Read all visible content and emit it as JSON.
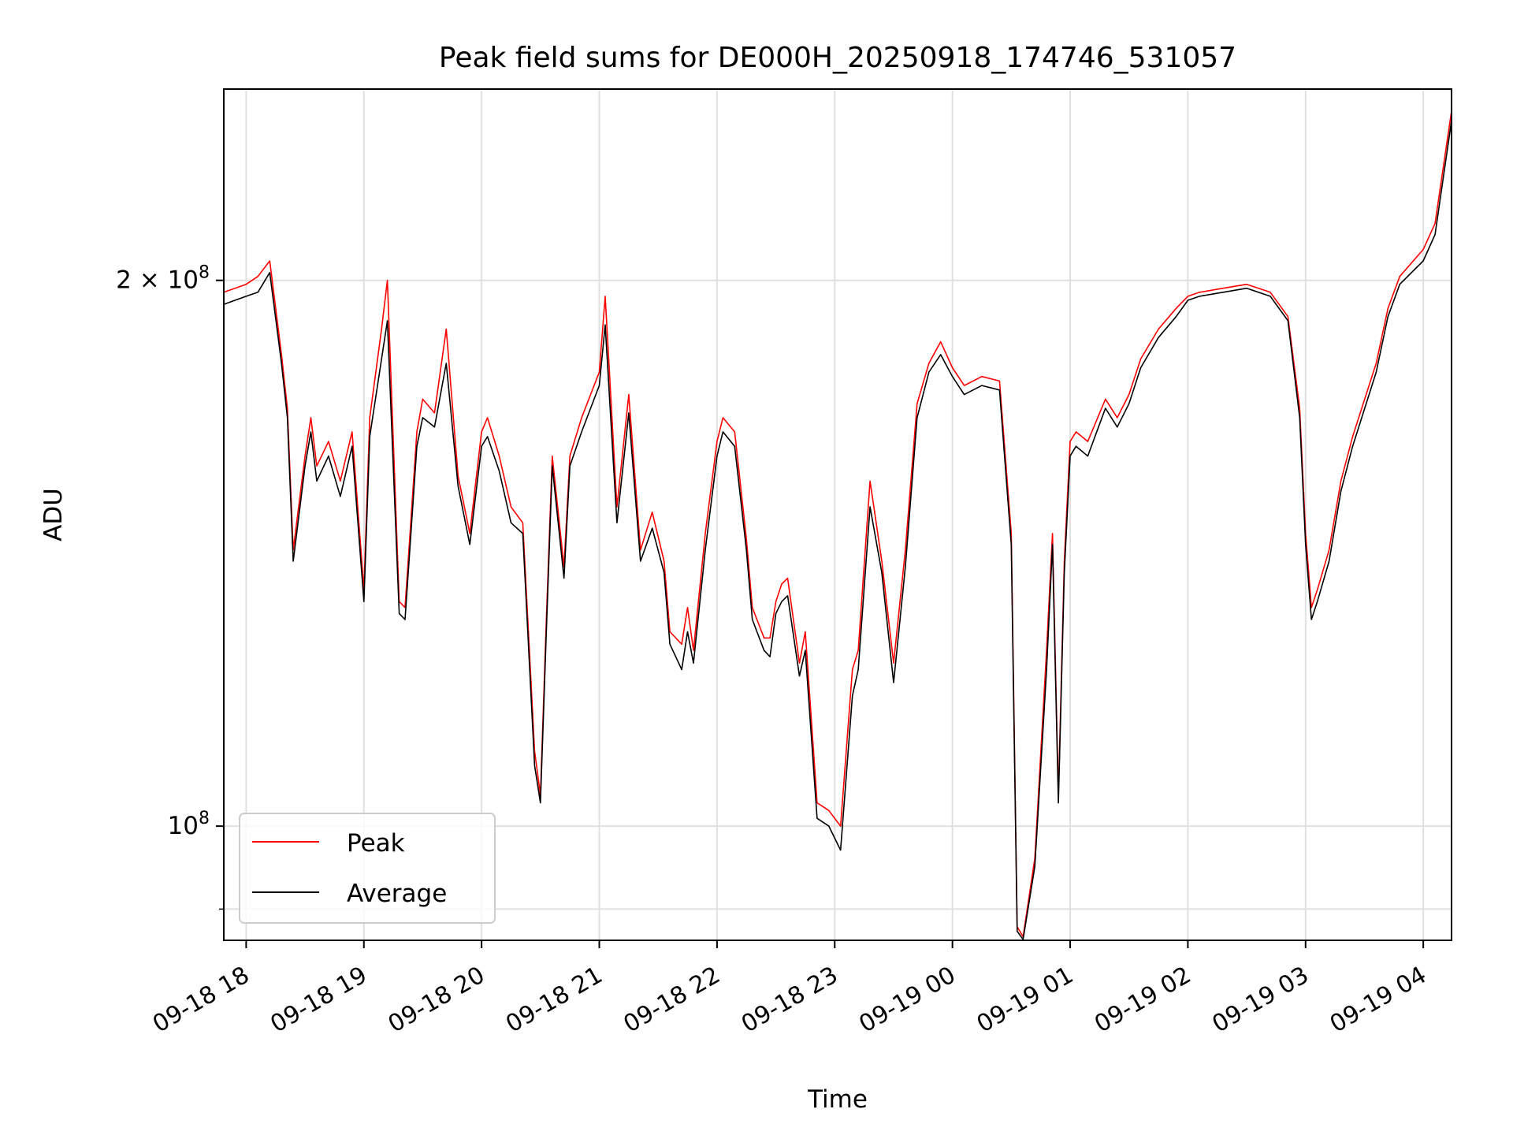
{
  "chart_data": {
    "type": "line",
    "title": "Peak field sums for DE000H_20250918_174746_531057",
    "xlabel": "Time",
    "ylabel": "ADU",
    "yscale": "log",
    "ylim": [
      86500000,
      255000000
    ],
    "xlim_hours": [
      -0.19,
      10.24
    ],
    "grid": true,
    "legend_position": "lower-left",
    "x_tick_labels": [
      "09-18 18",
      "09-18 19",
      "09-18 20",
      "09-18 21",
      "09-18 22",
      "09-18 23",
      "09-19 00",
      "09-19 01",
      "09-19 02",
      "09-19 03",
      "09-19 04"
    ],
    "x_tick_hours": [
      0,
      1,
      2,
      3,
      4,
      5,
      6,
      7,
      8,
      9,
      10
    ],
    "y_major_ticks": [
      {
        "value": 100000000,
        "base": "10",
        "exp": "8",
        "coef": ""
      },
      {
        "value": 200000000,
        "base": "10",
        "exp": "8",
        "coef": "2 × "
      }
    ],
    "y_minor_ticks": [
      90000000
    ],
    "x_hours": [
      -0.19,
      0,
      0.1,
      0.2,
      0.3,
      0.35,
      0.4,
      0.5,
      0.55,
      0.6,
      0.7,
      0.8,
      0.9,
      1.0,
      1.05,
      1.15,
      1.2,
      1.3,
      1.35,
      1.45,
      1.5,
      1.6,
      1.7,
      1.8,
      1.9,
      2.0,
      2.05,
      2.15,
      2.25,
      2.35,
      2.45,
      2.5,
      2.55,
      2.6,
      2.7,
      2.75,
      2.85,
      3.0,
      3.05,
      3.15,
      3.25,
      3.35,
      3.45,
      3.55,
      3.6,
      3.7,
      3.75,
      3.8,
      3.9,
      4.0,
      4.05,
      4.15,
      4.25,
      4.3,
      4.4,
      4.45,
      4.5,
      4.55,
      4.6,
      4.7,
      4.75,
      4.85,
      4.95,
      5.05,
      5.15,
      5.2,
      5.3,
      5.4,
      5.5,
      5.6,
      5.7,
      5.8,
      5.9,
      6.0,
      6.1,
      6.25,
      6.4,
      6.5,
      6.55,
      6.6,
      6.7,
      6.8,
      6.85,
      6.9,
      6.95,
      7.0,
      7.05,
      7.15,
      7.3,
      7.4,
      7.5,
      7.6,
      7.75,
      7.9,
      8.0,
      8.1,
      8.3,
      8.5,
      8.7,
      8.85,
      8.95,
      9.0,
      9.05,
      9.1,
      9.2,
      9.3,
      9.4,
      9.6,
      9.7,
      9.8,
      10.0,
      10.1,
      10.24
    ],
    "series": [
      {
        "name": "Peak",
        "color": "#ff0000",
        "values": [
          197000000,
          199000000,
          201000000,
          205000000,
          182000000,
          170000000,
          142000000,
          160000000,
          168000000,
          158000000,
          163000000,
          155000000,
          165000000,
          135000000,
          168000000,
          188000000,
          200000000,
          133000000,
          132000000,
          165000000,
          172000000,
          169000000,
          188000000,
          156000000,
          145000000,
          165000000,
          168000000,
          160000000,
          150000000,
          147000000,
          110000000,
          104000000,
          130000000,
          160000000,
          139000000,
          160000000,
          168000000,
          178000000,
          196000000,
          150000000,
          173000000,
          142000000,
          149000000,
          140000000,
          128000000,
          126000000,
          132000000,
          125000000,
          145000000,
          163000000,
          168000000,
          165000000,
          144000000,
          132000000,
          127000000,
          127000000,
          133000000,
          136000000,
          137000000,
          123000000,
          128000000,
          103000000,
          102000000,
          100000000,
          122000000,
          125000000,
          155000000,
          140000000,
          123000000,
          142000000,
          171000000,
          180000000,
          185000000,
          179000000,
          175000000,
          177000000,
          176000000,
          145000000,
          88000000,
          86900000,
          96000000,
          125000000,
          145000000,
          104000000,
          140000000,
          163000000,
          165000000,
          163000000,
          172000000,
          168000000,
          173000000,
          181000000,
          188000000,
          193000000,
          196000000,
          197000000,
          198000000,
          199000000,
          197000000,
          191000000,
          170000000,
          145000000,
          132000000,
          135000000,
          142000000,
          155000000,
          164000000,
          180000000,
          193000000,
          201000000,
          208000000,
          215000000,
          248000000
        ]
      },
      {
        "name": "Average",
        "color": "#000000",
        "values": [
          194000000,
          196000000,
          197000000,
          202000000,
          180000000,
          168000000,
          140000000,
          158000000,
          165000000,
          155000000,
          160000000,
          152000000,
          162000000,
          133000000,
          164000000,
          181000000,
          190000000,
          131000000,
          130000000,
          162000000,
          168000000,
          166000000,
          180000000,
          154000000,
          143000000,
          162000000,
          164000000,
          157000000,
          147000000,
          145000000,
          108000000,
          103000000,
          128000000,
          158000000,
          137000000,
          158000000,
          165000000,
          175000000,
          189000000,
          147000000,
          169000000,
          140000000,
          146000000,
          138000000,
          126000000,
          122000000,
          128000000,
          123000000,
          142000000,
          160000000,
          165000000,
          162000000,
          142000000,
          130000000,
          125000000,
          124000000,
          131000000,
          133000000,
          134000000,
          121000000,
          125000000,
          101000000,
          100000000,
          97000000,
          118000000,
          122000000,
          150000000,
          138000000,
          120000000,
          139000000,
          168000000,
          178000000,
          182000000,
          177000000,
          173000000,
          175000000,
          174000000,
          143000000,
          87500000,
          86600000,
          95000000,
          122000000,
          143000000,
          103000000,
          138000000,
          160000000,
          162000000,
          160000000,
          170000000,
          166000000,
          171000000,
          179000000,
          186000000,
          191000000,
          195000000,
          196000000,
          197000000,
          198000000,
          196000000,
          190000000,
          168000000,
          143000000,
          130000000,
          133000000,
          140000000,
          153000000,
          162000000,
          178000000,
          191000000,
          199000000,
          205000000,
          212000000,
          245000000
        ]
      }
    ]
  }
}
